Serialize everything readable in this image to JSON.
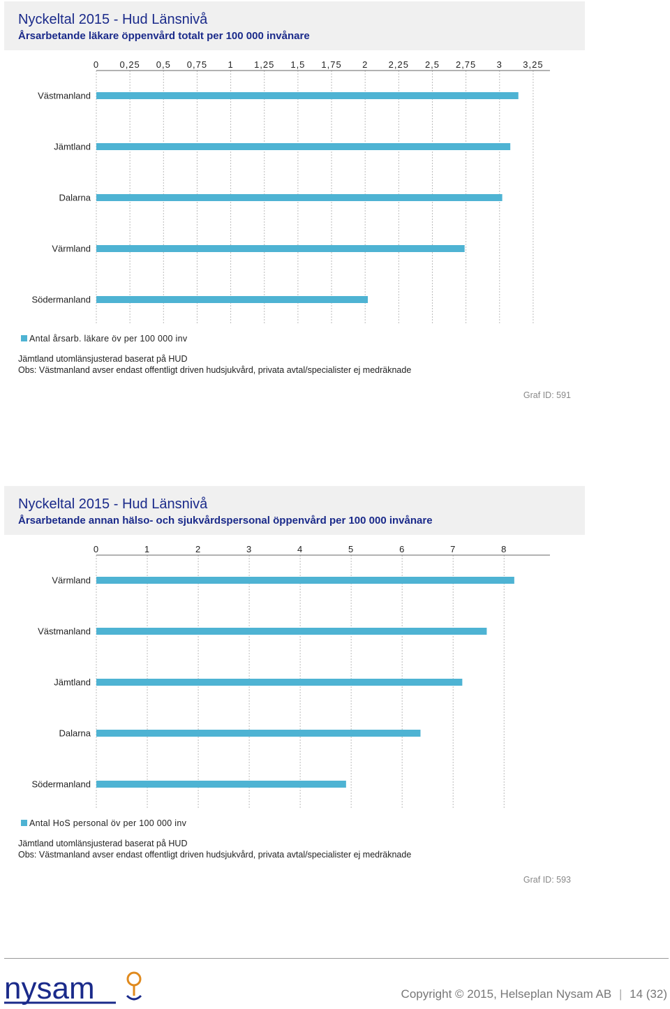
{
  "colors": {
    "bar": "#4eb3d3",
    "title": "#1a2a8a",
    "grid": "#bbbbbb"
  },
  "charts": [
    {
      "title": "Nyckeltal 2015 - Hud Länsnivå",
      "subtitle": "Årsarbetande läkare öppenvård totalt per 100 000 invånare",
      "legend": "Antal årsarb. läkare öv per 100 000 inv",
      "note1": "Jämtland utomlänsjusterad baserat på HUD",
      "note2": "Obs: Västmanland avser endast offentligt driven hudsjukvård, privata avtal/specialister ej medräknade",
      "graf_id": "Graf ID: 591"
    },
    {
      "title": "Nyckeltal 2015 - Hud Länsnivå",
      "subtitle": "Årsarbetande annan hälso- och sjukvårdspersonal öppenvård per 100 000 invånare",
      "legend": "Antal HoS personal öv per 100 000 inv",
      "note1": "Jämtland utomlänsjusterad baserat på HUD",
      "note2": "Obs: Västmanland avser endast offentligt driven hudsjukvård, privata avtal/specialister ej medräknade",
      "graf_id": "Graf ID: 593"
    }
  ],
  "chart_data": [
    {
      "type": "bar",
      "orientation": "horizontal",
      "categories": [
        "Västmanland",
        "Jämtland",
        "Dalarna",
        "Värmland",
        "Södermanland"
      ],
      "values": [
        3.14,
        3.08,
        3.02,
        2.74,
        2.02
      ],
      "xlim": [
        0,
        3.375
      ],
      "tick_labels": [
        "0",
        "0,25",
        "0,5",
        "0,75",
        "1",
        "1,25",
        "1,5",
        "1,75",
        "2",
        "2,25",
        "2,5",
        "2,75",
        "3",
        "3,25"
      ],
      "axis_position": "top",
      "grid": true
    },
    {
      "type": "bar",
      "orientation": "horizontal",
      "categories": [
        "Värmland",
        "Västmanland",
        "Jämtland",
        "Dalarna",
        "Södermanland"
      ],
      "values": [
        8.2,
        7.66,
        7.18,
        6.36,
        4.9
      ],
      "xlim": [
        0,
        8.9
      ],
      "tick_labels": [
        "0",
        "1",
        "2",
        "3",
        "4",
        "5",
        "6",
        "7",
        "8"
      ],
      "axis_position": "top",
      "grid": true
    }
  ],
  "footer": {
    "logo_text": "nysam",
    "copyright": "Copyright © 2015, Helseplan Nysam AB",
    "page": "14 (32)"
  }
}
